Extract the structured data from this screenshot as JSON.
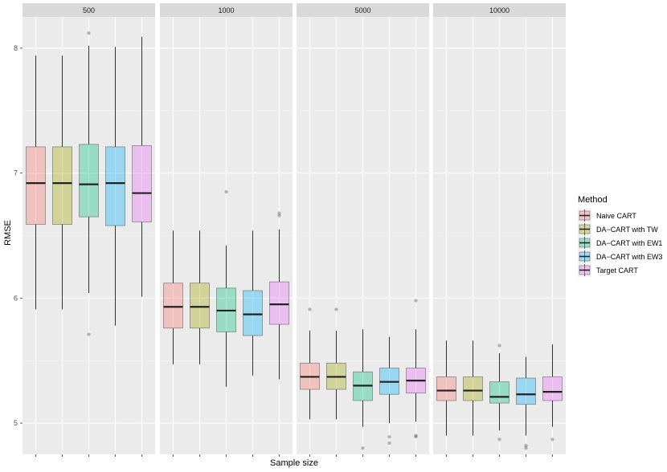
{
  "chart_data": {
    "type": "boxplot",
    "xlabel": "Sample size",
    "ylabel": "RMSE",
    "ylim": [
      4.75,
      8.25
    ],
    "yticks": [
      5,
      6,
      7,
      8
    ],
    "facets": [
      "500",
      "1000",
      "5000",
      "10000"
    ],
    "legend": {
      "title": "Method",
      "position": "right",
      "entries": [
        "Naive CART",
        "DA−CART with TW",
        "DA−CART with EW1",
        "DA−CART with EW3",
        "Target CART"
      ]
    },
    "colors": [
      "#F8766D",
      "#A3A500",
      "#00BF7D",
      "#00B0F6",
      "#E76BF3"
    ],
    "series": [
      {
        "facet": "500",
        "boxes": [
          {
            "method": "Naive CART",
            "lower_whisker": 5.91,
            "q1": 6.59,
            "median": 6.92,
            "q3": 7.21,
            "upper_whisker": 7.94,
            "outliers": []
          },
          {
            "method": "DA−CART with TW",
            "lower_whisker": 5.91,
            "q1": 6.59,
            "median": 6.92,
            "q3": 7.21,
            "upper_whisker": 7.94,
            "outliers": []
          },
          {
            "method": "DA−CART with EW1",
            "lower_whisker": 6.04,
            "q1": 6.65,
            "median": 6.91,
            "q3": 7.23,
            "upper_whisker": 8.02,
            "outliers": [
              8.12,
              5.71
            ]
          },
          {
            "method": "DA−CART with EW3",
            "lower_whisker": 5.78,
            "q1": 6.58,
            "median": 6.92,
            "q3": 7.21,
            "upper_whisker": 8.01,
            "outliers": []
          },
          {
            "method": "Target CART",
            "lower_whisker": 6.01,
            "q1": 6.61,
            "median": 6.84,
            "q3": 7.22,
            "upper_whisker": 8.09,
            "outliers": []
          }
        ]
      },
      {
        "facet": "1000",
        "boxes": [
          {
            "method": "Naive CART",
            "lower_whisker": 5.47,
            "q1": 5.76,
            "median": 5.93,
            "q3": 6.12,
            "upper_whisker": 6.54,
            "outliers": []
          },
          {
            "method": "DA−CART with TW",
            "lower_whisker": 5.47,
            "q1": 5.76,
            "median": 5.93,
            "q3": 6.12,
            "upper_whisker": 6.54,
            "outliers": []
          },
          {
            "method": "DA−CART with EW1",
            "lower_whisker": 5.29,
            "q1": 5.73,
            "median": 5.9,
            "q3": 6.08,
            "upper_whisker": 6.42,
            "outliers": [
              6.85
            ]
          },
          {
            "method": "DA−CART with EW3",
            "lower_whisker": 5.38,
            "q1": 5.7,
            "median": 5.87,
            "q3": 6.06,
            "upper_whisker": 6.54,
            "outliers": []
          },
          {
            "method": "Target CART",
            "lower_whisker": 5.35,
            "q1": 5.79,
            "median": 5.95,
            "q3": 6.13,
            "upper_whisker": 6.55,
            "outliers": [
              6.68,
              6.66
            ]
          }
        ]
      },
      {
        "facet": "5000",
        "boxes": [
          {
            "method": "Naive CART",
            "lower_whisker": 5.03,
            "q1": 5.27,
            "median": 5.37,
            "q3": 5.48,
            "upper_whisker": 5.74,
            "outliers": [
              5.91
            ]
          },
          {
            "method": "DA−CART with TW",
            "lower_whisker": 5.03,
            "q1": 5.27,
            "median": 5.37,
            "q3": 5.48,
            "upper_whisker": 5.74,
            "outliers": [
              5.91
            ]
          },
          {
            "method": "DA−CART with EW1",
            "lower_whisker": 4.97,
            "q1": 5.18,
            "median": 5.3,
            "q3": 5.41,
            "upper_whisker": 5.75,
            "outliers": [
              4.8
            ]
          },
          {
            "method": "DA−CART with EW3",
            "lower_whisker": 5.0,
            "q1": 5.23,
            "median": 5.33,
            "q3": 5.44,
            "upper_whisker": 5.69,
            "outliers": [
              4.89,
              4.84
            ]
          },
          {
            "method": "Target CART",
            "lower_whisker": 5.01,
            "q1": 5.24,
            "median": 5.34,
            "q3": 5.44,
            "upper_whisker": 5.75,
            "outliers": [
              5.98,
              4.9,
              4.89
            ]
          }
        ]
      },
      {
        "facet": "10000",
        "boxes": [
          {
            "method": "Naive CART",
            "lower_whisker": 4.9,
            "q1": 5.18,
            "median": 5.26,
            "q3": 5.37,
            "upper_whisker": 5.66,
            "outliers": []
          },
          {
            "method": "DA−CART with TW",
            "lower_whisker": 4.9,
            "q1": 5.18,
            "median": 5.26,
            "q3": 5.37,
            "upper_whisker": 5.66,
            "outliers": []
          },
          {
            "method": "DA−CART with EW1",
            "lower_whisker": 4.94,
            "q1": 5.16,
            "median": 5.21,
            "q3": 5.33,
            "upper_whisker": 5.56,
            "outliers": [
              5.62,
              4.87
            ]
          },
          {
            "method": "DA−CART with EW3",
            "lower_whisker": 4.9,
            "q1": 5.15,
            "median": 5.23,
            "q3": 5.36,
            "upper_whisker": 5.53,
            "outliers": [
              4.82,
              4.8
            ]
          },
          {
            "method": "Target CART",
            "lower_whisker": 4.97,
            "q1": 5.18,
            "median": 5.25,
            "q3": 5.37,
            "upper_whisker": 5.63,
            "outliers": [
              4.87
            ]
          }
        ]
      }
    ]
  }
}
